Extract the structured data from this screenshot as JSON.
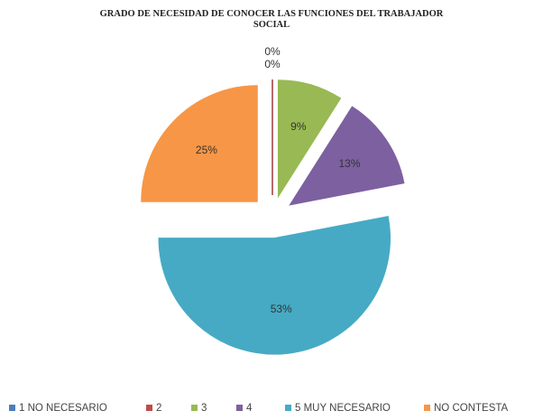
{
  "chart_data": {
    "type": "pie",
    "title": "GRADO DE NECESIDAD DE CONOCER LAS FUNCIONES DEL TRABAJADOR SOCIAL",
    "categories": [
      "1 NO NECESARIO",
      "2",
      "3",
      "4",
      "5 MUY NECESARIO",
      "NO CONTESTA"
    ],
    "values": [
      0,
      0,
      9,
      13,
      53,
      25
    ],
    "value_labels": [
      "0%",
      "0%",
      "9%",
      "13%",
      "53%",
      "25%"
    ],
    "colors": [
      "#4a7ebb",
      "#be4b48",
      "#98b954",
      "#7d60a0",
      "#46aac5",
      "#f79646"
    ],
    "legend": "bottom"
  }
}
